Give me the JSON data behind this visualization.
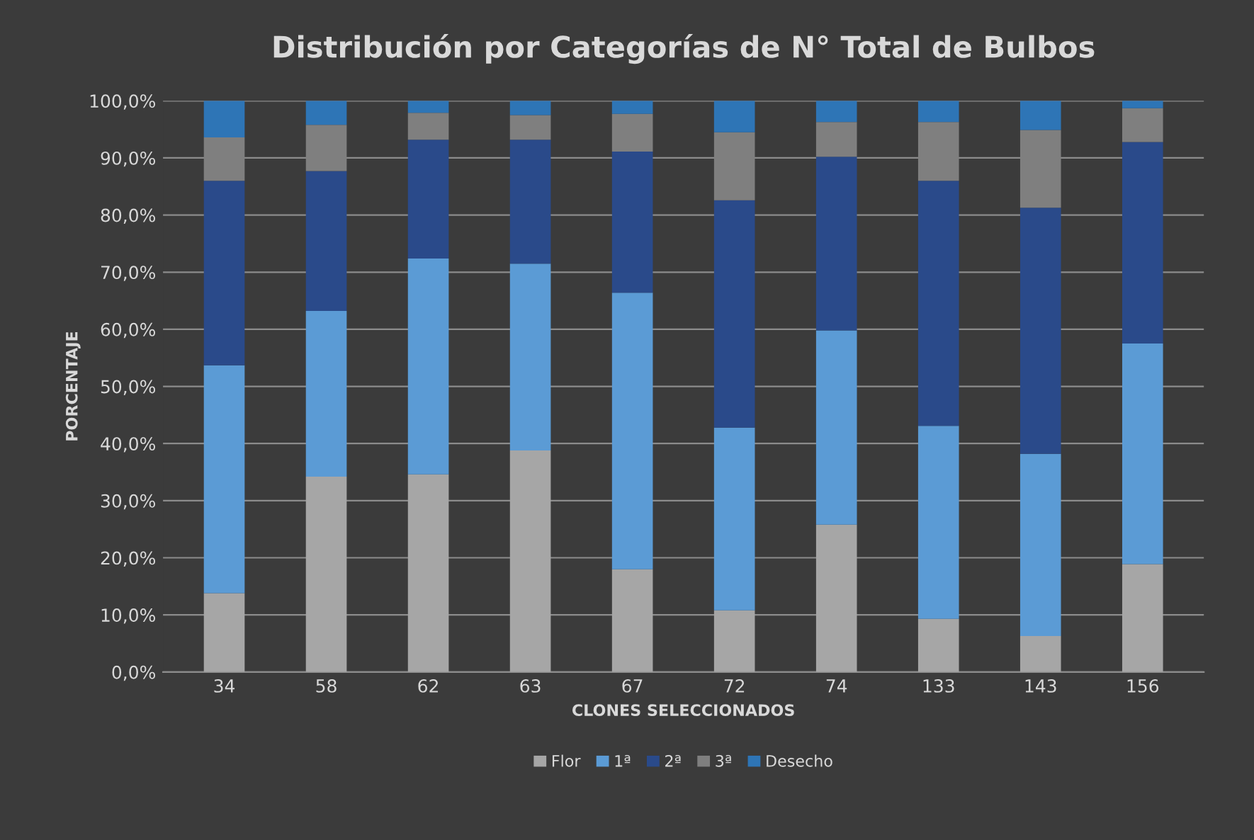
{
  "chart_data": {
    "type": "bar",
    "stacked": true,
    "title": "Distribución por Categorías de N° Total de Bulbos",
    "xlabel": "CLONES SELECCIONADOS",
    "ylabel": "PORCENTAJE",
    "categories": [
      "34",
      "58",
      "62",
      "63",
      "67",
      "72",
      "74",
      "133",
      "143",
      "156"
    ],
    "series": [
      {
        "name": "Flor",
        "color": "#a6a6a6",
        "values": [
          13.8,
          34.2,
          34.6,
          38.8,
          18.0,
          10.8,
          25.8,
          9.3,
          6.3,
          18.9
        ]
      },
      {
        "name": "1ª",
        "color": "#5b9bd5",
        "values": [
          39.9,
          29.0,
          37.8,
          32.7,
          48.4,
          32.0,
          34.0,
          33.8,
          31.9,
          38.6
        ]
      },
      {
        "name": "2ª",
        "color": "#2a4a8a",
        "values": [
          32.3,
          24.5,
          20.8,
          21.7,
          24.7,
          39.8,
          30.4,
          42.9,
          43.1,
          35.3
        ]
      },
      {
        "name": "3ª",
        "color": "#7f7f7f",
        "values": [
          7.6,
          8.1,
          4.7,
          4.3,
          6.6,
          11.9,
          6.1,
          10.3,
          13.6,
          5.9
        ]
      },
      {
        "name": "Desecho",
        "color": "#2e75b6",
        "values": [
          6.4,
          4.2,
          2.1,
          2.5,
          2.3,
          5.5,
          3.7,
          3.7,
          5.1,
          1.3
        ]
      }
    ],
    "ylim": [
      0,
      100
    ],
    "yticks": [
      {
        "value": 0,
        "label": "0,0%"
      },
      {
        "value": 10,
        "label": "10,0%"
      },
      {
        "value": 20,
        "label": "20,0%"
      },
      {
        "value": 30,
        "label": "30,0%"
      },
      {
        "value": 40,
        "label": "40,0%"
      },
      {
        "value": 50,
        "label": "50,0%"
      },
      {
        "value": 60,
        "label": "60,0%"
      },
      {
        "value": 70,
        "label": "70,0%"
      },
      {
        "value": 80,
        "label": "80,0%"
      },
      {
        "value": 90,
        "label": "90,0%"
      },
      {
        "value": 100,
        "label": "100,0%"
      }
    ],
    "grid": "y",
    "legend": "bottom"
  }
}
